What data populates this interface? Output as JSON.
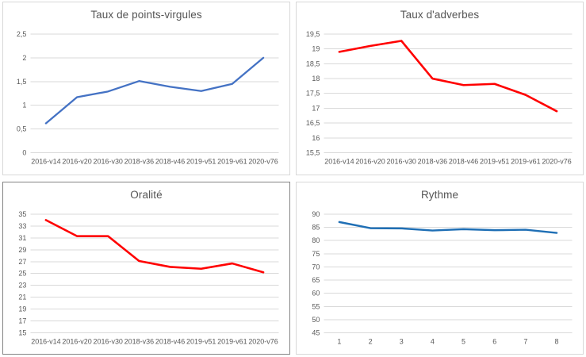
{
  "colors": {
    "grid_line": "#d9d9d9",
    "axis_text": "#595959",
    "title_text": "#555555",
    "panel_border": "#d8d8d8",
    "panel_border_selected": "#848484",
    "series_blue": "#4472c4",
    "series_red": "#ff0000",
    "series_steel_blue": "#1f6fb5"
  },
  "chart_data": [
    {
      "type": "line",
      "title": "Taux de points-virgules",
      "categories": [
        "2016-v14",
        "2016-v20",
        "2016-v30",
        "2018-v36",
        "2018-v46",
        "2019-v51",
        "2019-v61",
        "2020-v76"
      ],
      "values": [
        0.62,
        1.17,
        1.29,
        1.51,
        1.39,
        1.3,
        1.45,
        2.0
      ],
      "ylim": [
        0,
        2.5
      ],
      "y_tick_values": [
        2.5,
        2,
        1.5,
        1,
        0.5,
        0
      ],
      "y_tick_labels": [
        "2,5",
        "2",
        "1,5",
        "1",
        "0,5",
        "0"
      ],
      "line_color": "#4472c4",
      "line_width": 2.3,
      "border_color": "#d8d8d8",
      "grid": true,
      "legend": "none",
      "xlabel": "",
      "ylabel": ""
    },
    {
      "type": "line",
      "title": "Taux d'adverbes",
      "categories": [
        "2016-v14",
        "2016-v20",
        "2016-v30",
        "2018-v36",
        "2018-v46",
        "2019-v51",
        "2019-v61",
        "2020-v76"
      ],
      "values": [
        18.9,
        19.1,
        19.27,
        18.0,
        17.78,
        17.82,
        17.45,
        16.9
      ],
      "ylim": [
        15.5,
        19.5
      ],
      "y_tick_values": [
        19.5,
        19,
        18.5,
        18,
        17.5,
        17,
        16.5,
        16,
        15.5
      ],
      "y_tick_labels": [
        "19,5",
        "19",
        "18,5",
        "18",
        "17,5",
        "17",
        "16,5",
        "16",
        "15,5"
      ],
      "line_color": "#ff0000",
      "line_width": 2.6,
      "border_color": "#d8d8d8",
      "grid": true,
      "legend": "none",
      "xlabel": "",
      "ylabel": ""
    },
    {
      "type": "line",
      "title": "Oralité",
      "categories": [
        "2016-v14",
        "2016-v20",
        "2016-v30",
        "2018-v36",
        "2018-v46",
        "2019-v51",
        "2019-v61",
        "2020-v76"
      ],
      "values": [
        34.0,
        31.3,
        31.3,
        27.1,
        26.1,
        25.8,
        26.7,
        25.2
      ],
      "ylim": [
        15,
        35
      ],
      "y_tick_values": [
        35,
        33,
        31,
        29,
        27,
        25,
        23,
        21,
        19,
        17,
        15
      ],
      "y_tick_labels": [
        "35",
        "33",
        "31",
        "29",
        "27",
        "25",
        "23",
        "21",
        "19",
        "17",
        "15"
      ],
      "line_color": "#ff0000",
      "line_width": 2.6,
      "border_color": "#848484",
      "grid": true,
      "legend": "none",
      "xlabel": "",
      "ylabel": ""
    },
    {
      "type": "line",
      "title": "Rythme",
      "categories": [
        "1",
        "2",
        "3",
        "4",
        "5",
        "6",
        "7",
        "8"
      ],
      "values": [
        87.0,
        84.7,
        84.6,
        83.8,
        84.3,
        83.9,
        84.1,
        82.9
      ],
      "ylim": [
        45,
        90
      ],
      "y_tick_values": [
        90,
        85,
        80,
        75,
        70,
        65,
        60,
        55,
        50,
        45
      ],
      "y_tick_labels": [
        "90",
        "85",
        "80",
        "75",
        "70",
        "65",
        "60",
        "55",
        "50",
        "45"
      ],
      "line_color": "#1f6fb5",
      "line_width": 2.5,
      "border_color": "#d8d8d8",
      "grid": true,
      "legend": "none",
      "xlabel": "",
      "ylabel": ""
    }
  ]
}
